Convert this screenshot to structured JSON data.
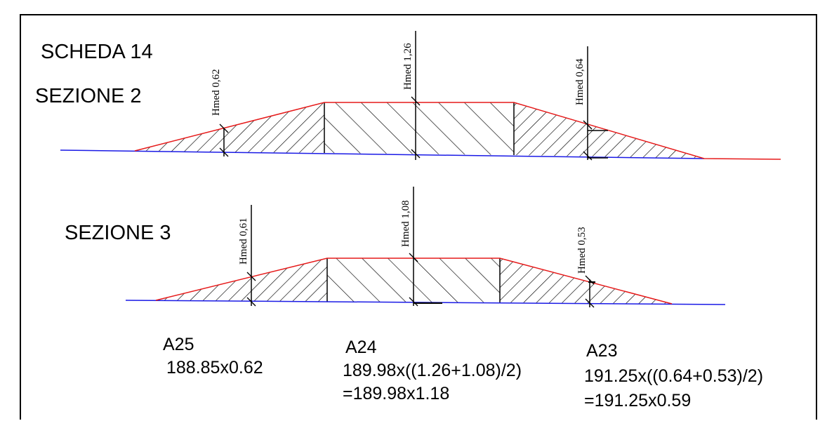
{
  "sheet": {
    "title": "SCHEDA 14"
  },
  "colors": {
    "ground": "#1a1ae6",
    "profile": "#e61a1a",
    "hatch": "#000000"
  },
  "sections": [
    {
      "title": "SEZIONE 2",
      "heights": [
        {
          "label": "Hmed 0,62",
          "value": 0.62
        },
        {
          "label": "Hmed 1,26",
          "value": 1.26
        },
        {
          "label": "Hmed 0,64",
          "value": 0.64
        }
      ]
    },
    {
      "title": "SEZIONE 3",
      "heights": [
        {
          "label": "Hmed 0,61",
          "value": 0.61
        },
        {
          "label": "Hmed 1,08",
          "value": 1.08
        },
        {
          "label": "Hmed 0,53",
          "value": 0.53
        }
      ]
    }
  ],
  "calculations": [
    {
      "id": "A25",
      "lines": [
        "188.85x0.62"
      ]
    },
    {
      "id": "A24",
      "lines": [
        "189.98x((1.26+1.08)/2)",
        "=189.98x1.18"
      ]
    },
    {
      "id": "A23",
      "lines": [
        "191.25x((0.64+0.53)/2)",
        "=191.25x0.59"
      ]
    }
  ]
}
